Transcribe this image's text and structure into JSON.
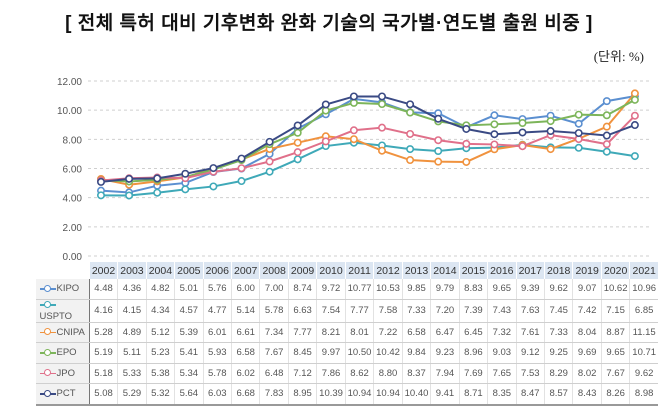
{
  "title": "[ 전체 특허 대비 기후변화 완화 기술의 국가별·연도별 출원 비중 ]",
  "unit": "(단위: %)",
  "chart_data": {
    "type": "line",
    "title": "[ 전체 특허 대비 기후변화 완화 기술의 국가별·연도별 출원 비중 ]",
    "ylim": [
      0,
      12
    ],
    "yticks": [
      "0.00",
      "2.00",
      "4.00",
      "6.00",
      "8.00",
      "10.00",
      "12.00"
    ],
    "grid": true,
    "legend": "table-left",
    "categories": [
      "2002",
      "2003",
      "2004",
      "2005",
      "2006",
      "2007",
      "2008",
      "2009",
      "2010",
      "2011",
      "2012",
      "2013",
      "2014",
      "2015",
      "2016",
      "2017",
      "2018",
      "2019",
      "2020",
      "2021"
    ],
    "series": [
      {
        "name": "KIPO",
        "color": "#5b8fd0",
        "values": [
          4.48,
          4.36,
          4.82,
          5.01,
          5.76,
          6.0,
          7.0,
          8.74,
          9.72,
          10.77,
          10.53,
          9.85,
          9.79,
          8.83,
          9.65,
          9.39,
          9.62,
          9.07,
          10.62,
          10.96
        ]
      },
      {
        "name": "USPTO",
        "color": "#3fa9b8",
        "values": [
          4.16,
          4.15,
          4.34,
          4.57,
          4.77,
          5.14,
          5.78,
          6.63,
          7.54,
          7.77,
          7.58,
          7.33,
          7.2,
          7.39,
          7.43,
          7.63,
          7.45,
          7.42,
          7.15,
          6.85
        ]
      },
      {
        "name": "CNIPA",
        "color": "#f0923e",
        "values": [
          5.28,
          4.89,
          5.12,
          5.39,
          6.01,
          6.61,
          7.34,
          7.77,
          8.21,
          8.01,
          7.22,
          6.58,
          6.47,
          6.45,
          7.32,
          7.61,
          7.33,
          8.04,
          8.87,
          11.15
        ]
      },
      {
        "name": "EPO",
        "color": "#7db55a",
        "values": [
          5.19,
          5.11,
          5.23,
          5.41,
          5.93,
          6.58,
          7.67,
          8.45,
          9.97,
          10.5,
          10.42,
          9.84,
          9.23,
          8.96,
          9.03,
          9.12,
          9.25,
          9.69,
          9.65,
          10.71
        ]
      },
      {
        "name": "JPO",
        "color": "#e0708a",
        "values": [
          5.18,
          5.33,
          5.38,
          5.34,
          5.78,
          6.02,
          6.48,
          7.12,
          7.86,
          8.62,
          8.8,
          8.37,
          7.94,
          7.69,
          7.65,
          7.53,
          8.29,
          8.02,
          7.67,
          9.62
        ]
      },
      {
        "name": "PCT",
        "color": "#3a4a84",
        "values": [
          5.08,
          5.29,
          5.32,
          5.64,
          6.03,
          6.68,
          7.83,
          8.95,
          10.39,
          10.94,
          10.94,
          10.4,
          9.41,
          8.71,
          8.35,
          8.47,
          8.57,
          8.43,
          8.26,
          8.98
        ]
      }
    ]
  }
}
